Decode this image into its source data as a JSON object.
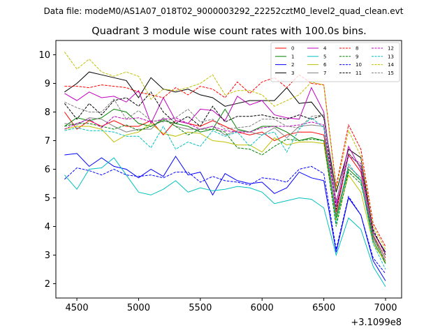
{
  "header": {
    "file_label": "Data file: modeM0/AS1A07_018T02_9000003292_22252cztM0_level2_quad_clean.evt"
  },
  "chart_data": {
    "type": "line",
    "title": "Quadrant 3 module wise count rates with 100.0s bins.",
    "xlabel": "",
    "ylabel": "",
    "x_offset_label": "+3.1099e8",
    "xlim": [
      4330,
      7130
    ],
    "ylim": [
      1.5,
      10.5
    ],
    "xticks": [
      4500,
      5000,
      5500,
      6000,
      6500,
      7000
    ],
    "yticks": [
      2,
      3,
      4,
      5,
      6,
      7,
      8,
      9,
      10
    ],
    "x": [
      4400,
      4500,
      4600,
      4700,
      4800,
      4900,
      5000,
      5100,
      5200,
      5300,
      5400,
      5500,
      5600,
      5700,
      5800,
      5900,
      6000,
      6100,
      6200,
      6300,
      6400,
      6500,
      6600,
      6700,
      6800,
      6900,
      7000
    ],
    "legend_position": "top-right",
    "series": [
      {
        "name": "0",
        "color": "#ff0000",
        "dash": false,
        "values": [
          8.0,
          7.4,
          7.7,
          7.5,
          7.7,
          7.5,
          7.5,
          7.7,
          7.2,
          7.7,
          7.6,
          7.5,
          7.7,
          7.5,
          7.3,
          7.2,
          7.3,
          7.0,
          7.2,
          7.3,
          7.3,
          7.2,
          4.5,
          6.5,
          5.9,
          3.7,
          2.9
        ]
      },
      {
        "name": "1",
        "color": "#008000",
        "dash": false,
        "values": [
          7.5,
          7.8,
          7.7,
          7.8,
          8.1,
          8.0,
          7.6,
          7.5,
          7.7,
          7.6,
          7.5,
          7.3,
          7.4,
          8.1,
          7.4,
          7.3,
          7.5,
          7.5,
          7.3,
          7.0,
          7.1,
          7.0,
          4.3,
          6.0,
          5.6,
          3.5,
          2.7
        ]
      },
      {
        "name": "2",
        "color": "#0000ff",
        "dash": false,
        "values": [
          6.5,
          6.55,
          6.1,
          6.4,
          6.1,
          6.0,
          5.7,
          6.0,
          5.75,
          6.45,
          5.8,
          5.9,
          5.1,
          5.85,
          5.6,
          5.5,
          5.55,
          5.15,
          5.35,
          5.9,
          5.7,
          5.6,
          3.1,
          5.0,
          4.4,
          2.8,
          2.1
        ]
      },
      {
        "name": "3",
        "color": "#000000",
        "dash": false,
        "values": [
          8.7,
          9.0,
          9.4,
          9.3,
          9.2,
          9.1,
          8.5,
          9.2,
          8.8,
          8.7,
          8.8,
          8.6,
          8.5,
          8.2,
          8.3,
          8.4,
          8.4,
          8.4,
          8.85,
          8.3,
          8.35,
          7.8,
          5.2,
          6.7,
          6.4,
          3.8,
          3.1
        ]
      },
      {
        "name": "4",
        "color": "#c000c0",
        "dash": false,
        "values": [
          8.65,
          8.4,
          8.7,
          8.5,
          8.55,
          8.35,
          8.75,
          7.6,
          8.5,
          7.7,
          7.6,
          8.1,
          8.05,
          7.7,
          8.55,
          8.25,
          8.4,
          7.9,
          7.8,
          7.75,
          8.85,
          8.0,
          4.8,
          6.8,
          6.0,
          3.6,
          2.8
        ]
      },
      {
        "name": "5",
        "color": "#00c0c0",
        "dash": false,
        "values": [
          5.8,
          5.3,
          6.0,
          6.05,
          6.4,
          5.8,
          5.2,
          5.1,
          5.3,
          5.6,
          5.2,
          5.35,
          5.25,
          5.3,
          5.4,
          5.35,
          5.2,
          4.8,
          4.9,
          5.0,
          4.95,
          4.65,
          3.0,
          4.3,
          3.9,
          2.6,
          1.9
        ]
      },
      {
        "name": "6",
        "color": "#c0c000",
        "dash": false,
        "values": [
          7.4,
          7.5,
          7.5,
          7.4,
          6.95,
          7.2,
          7.3,
          7.6,
          7.25,
          7.15,
          7.3,
          7.25,
          7.0,
          6.95,
          6.85,
          6.85,
          6.6,
          7.1,
          6.85,
          6.95,
          6.95,
          6.9,
          4.2,
          5.8,
          5.2,
          3.4,
          2.75
        ]
      },
      {
        "name": "7",
        "color": "#808080",
        "dash": false,
        "values": [
          7.6,
          7.55,
          7.8,
          7.75,
          7.5,
          7.3,
          7.4,
          7.4,
          7.8,
          7.5,
          7.4,
          7.4,
          7.5,
          7.2,
          7.35,
          7.3,
          7.2,
          7.45,
          7.1,
          7.5,
          7.55,
          7.5,
          4.4,
          6.1,
          5.7,
          3.6,
          2.8
        ]
      },
      {
        "name": "8",
        "color": "#ff0000",
        "dash": true,
        "values": [
          8.9,
          8.9,
          8.85,
          8.95,
          8.9,
          8.85,
          8.7,
          8.6,
          8.5,
          8.85,
          8.6,
          8.9,
          8.8,
          8.5,
          9.05,
          8.65,
          9.05,
          9.2,
          8.85,
          9.3,
          9.0,
          8.95,
          5.4,
          7.55,
          6.7,
          4.1,
          3.3
        ]
      },
      {
        "name": "9",
        "color": "#008000",
        "dash": true,
        "values": [
          7.5,
          7.6,
          7.6,
          7.5,
          7.4,
          7.55,
          7.35,
          7.5,
          7.75,
          7.5,
          7.2,
          7.4,
          7.4,
          7.3,
          6.75,
          6.7,
          6.5,
          6.8,
          7.05,
          7.0,
          7.05,
          7.0,
          4.0,
          5.9,
          5.5,
          3.7,
          2.7
        ]
      },
      {
        "name": "10",
        "color": "#0000ff",
        "dash": true,
        "values": [
          5.65,
          6.05,
          5.95,
          5.8,
          6.0,
          5.8,
          5.75,
          5.8,
          5.7,
          5.9,
          5.9,
          5.55,
          5.75,
          5.6,
          5.55,
          5.45,
          5.7,
          5.65,
          5.55,
          6.0,
          6.1,
          5.85,
          3.2,
          5.05,
          4.4,
          2.9,
          2.35
        ]
      },
      {
        "name": "11",
        "color": "#000000",
        "dash": true,
        "values": [
          8.3,
          7.75,
          8.3,
          7.9,
          8.4,
          8.5,
          8.2,
          8.7,
          8.0,
          7.6,
          7.85,
          7.5,
          8.2,
          7.65,
          7.85,
          7.85,
          7.9,
          7.8,
          7.75,
          7.9,
          7.75,
          7.9,
          4.6,
          6.55,
          6.1,
          3.9,
          3.0
        ]
      },
      {
        "name": "12",
        "color": "#c000c0",
        "dash": true,
        "values": [
          7.4,
          7.6,
          7.75,
          7.45,
          7.85,
          7.75,
          7.8,
          7.65,
          7.75,
          7.8,
          7.6,
          7.4,
          7.5,
          7.35,
          7.3,
          7.3,
          7.45,
          7.5,
          7.5,
          7.55,
          7.65,
          7.55,
          4.7,
          6.45,
          6.2,
          3.8,
          3.05
        ]
      },
      {
        "name": "13",
        "color": "#00c0c0",
        "dash": true,
        "values": [
          7.35,
          7.45,
          7.35,
          7.35,
          7.3,
          7.15,
          7.15,
          6.75,
          7.5,
          6.7,
          6.95,
          6.8,
          7.35,
          7.15,
          7.3,
          6.8,
          7.2,
          7.3,
          6.6,
          7.4,
          7.8,
          7.45,
          4.1,
          6.2,
          5.6,
          3.4,
          2.5
        ]
      },
      {
        "name": "14",
        "color": "#c0c000",
        "dash": true,
        "values": [
          10.1,
          9.5,
          9.85,
          9.4,
          9.25,
          9.4,
          9.25,
          8.45,
          8.8,
          8.75,
          8.85,
          9.0,
          9.3,
          8.6,
          8.75,
          8.75,
          8.6,
          8.2,
          8.4,
          8.6,
          9.05,
          8.95,
          5.3,
          7.35,
          6.45,
          4.0,
          3.2
        ]
      },
      {
        "name": "15",
        "color": "#808080",
        "dash": true,
        "values": [
          8.35,
          8.15,
          8.0,
          8.0,
          8.45,
          7.75,
          8.05,
          7.7,
          7.65,
          7.8,
          8.1,
          7.65,
          7.75,
          7.4,
          7.45,
          7.5,
          7.75,
          7.75,
          7.5,
          7.45,
          7.85,
          7.9,
          4.9,
          6.55,
          6.1,
          3.65,
          2.9
        ]
      }
    ]
  }
}
